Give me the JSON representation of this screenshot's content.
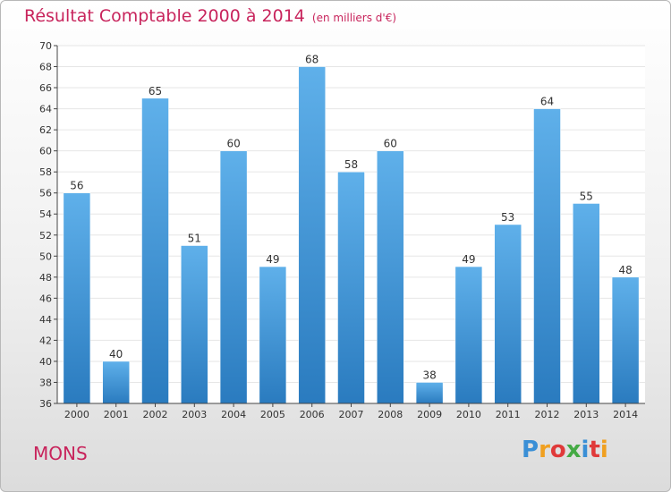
{
  "header": {
    "title": "Résultat Comptable 2000 à 2014",
    "subtitle": "(en milliers d'€)"
  },
  "footer": {
    "place": "MONS",
    "logo_text": "Proxiti"
  },
  "colors": {
    "title": "#c8245c",
    "bar_light": "#5fb0ea",
    "bar_dark": "#2a7bbf",
    "grid": "#e6e6e6",
    "axis": "#444444"
  },
  "chart_data": {
    "type": "bar",
    "title": "Résultat Comptable 2000 à 2014",
    "subtitle": "(en milliers d'€)",
    "categories": [
      "2000",
      "2001",
      "2002",
      "2003",
      "2004",
      "2005",
      "2006",
      "2007",
      "2008",
      "2009",
      "2010",
      "2011",
      "2012",
      "2013",
      "2014"
    ],
    "values": [
      56,
      40,
      65,
      51,
      60,
      49,
      68,
      58,
      60,
      38,
      49,
      53,
      64,
      55,
      48
    ],
    "ylim": [
      36,
      70
    ],
    "yticks": [
      36,
      38,
      40,
      42,
      44,
      46,
      48,
      50,
      52,
      54,
      56,
      58,
      60,
      62,
      64,
      66,
      68,
      70
    ],
    "grid": true,
    "data_labels": true
  }
}
